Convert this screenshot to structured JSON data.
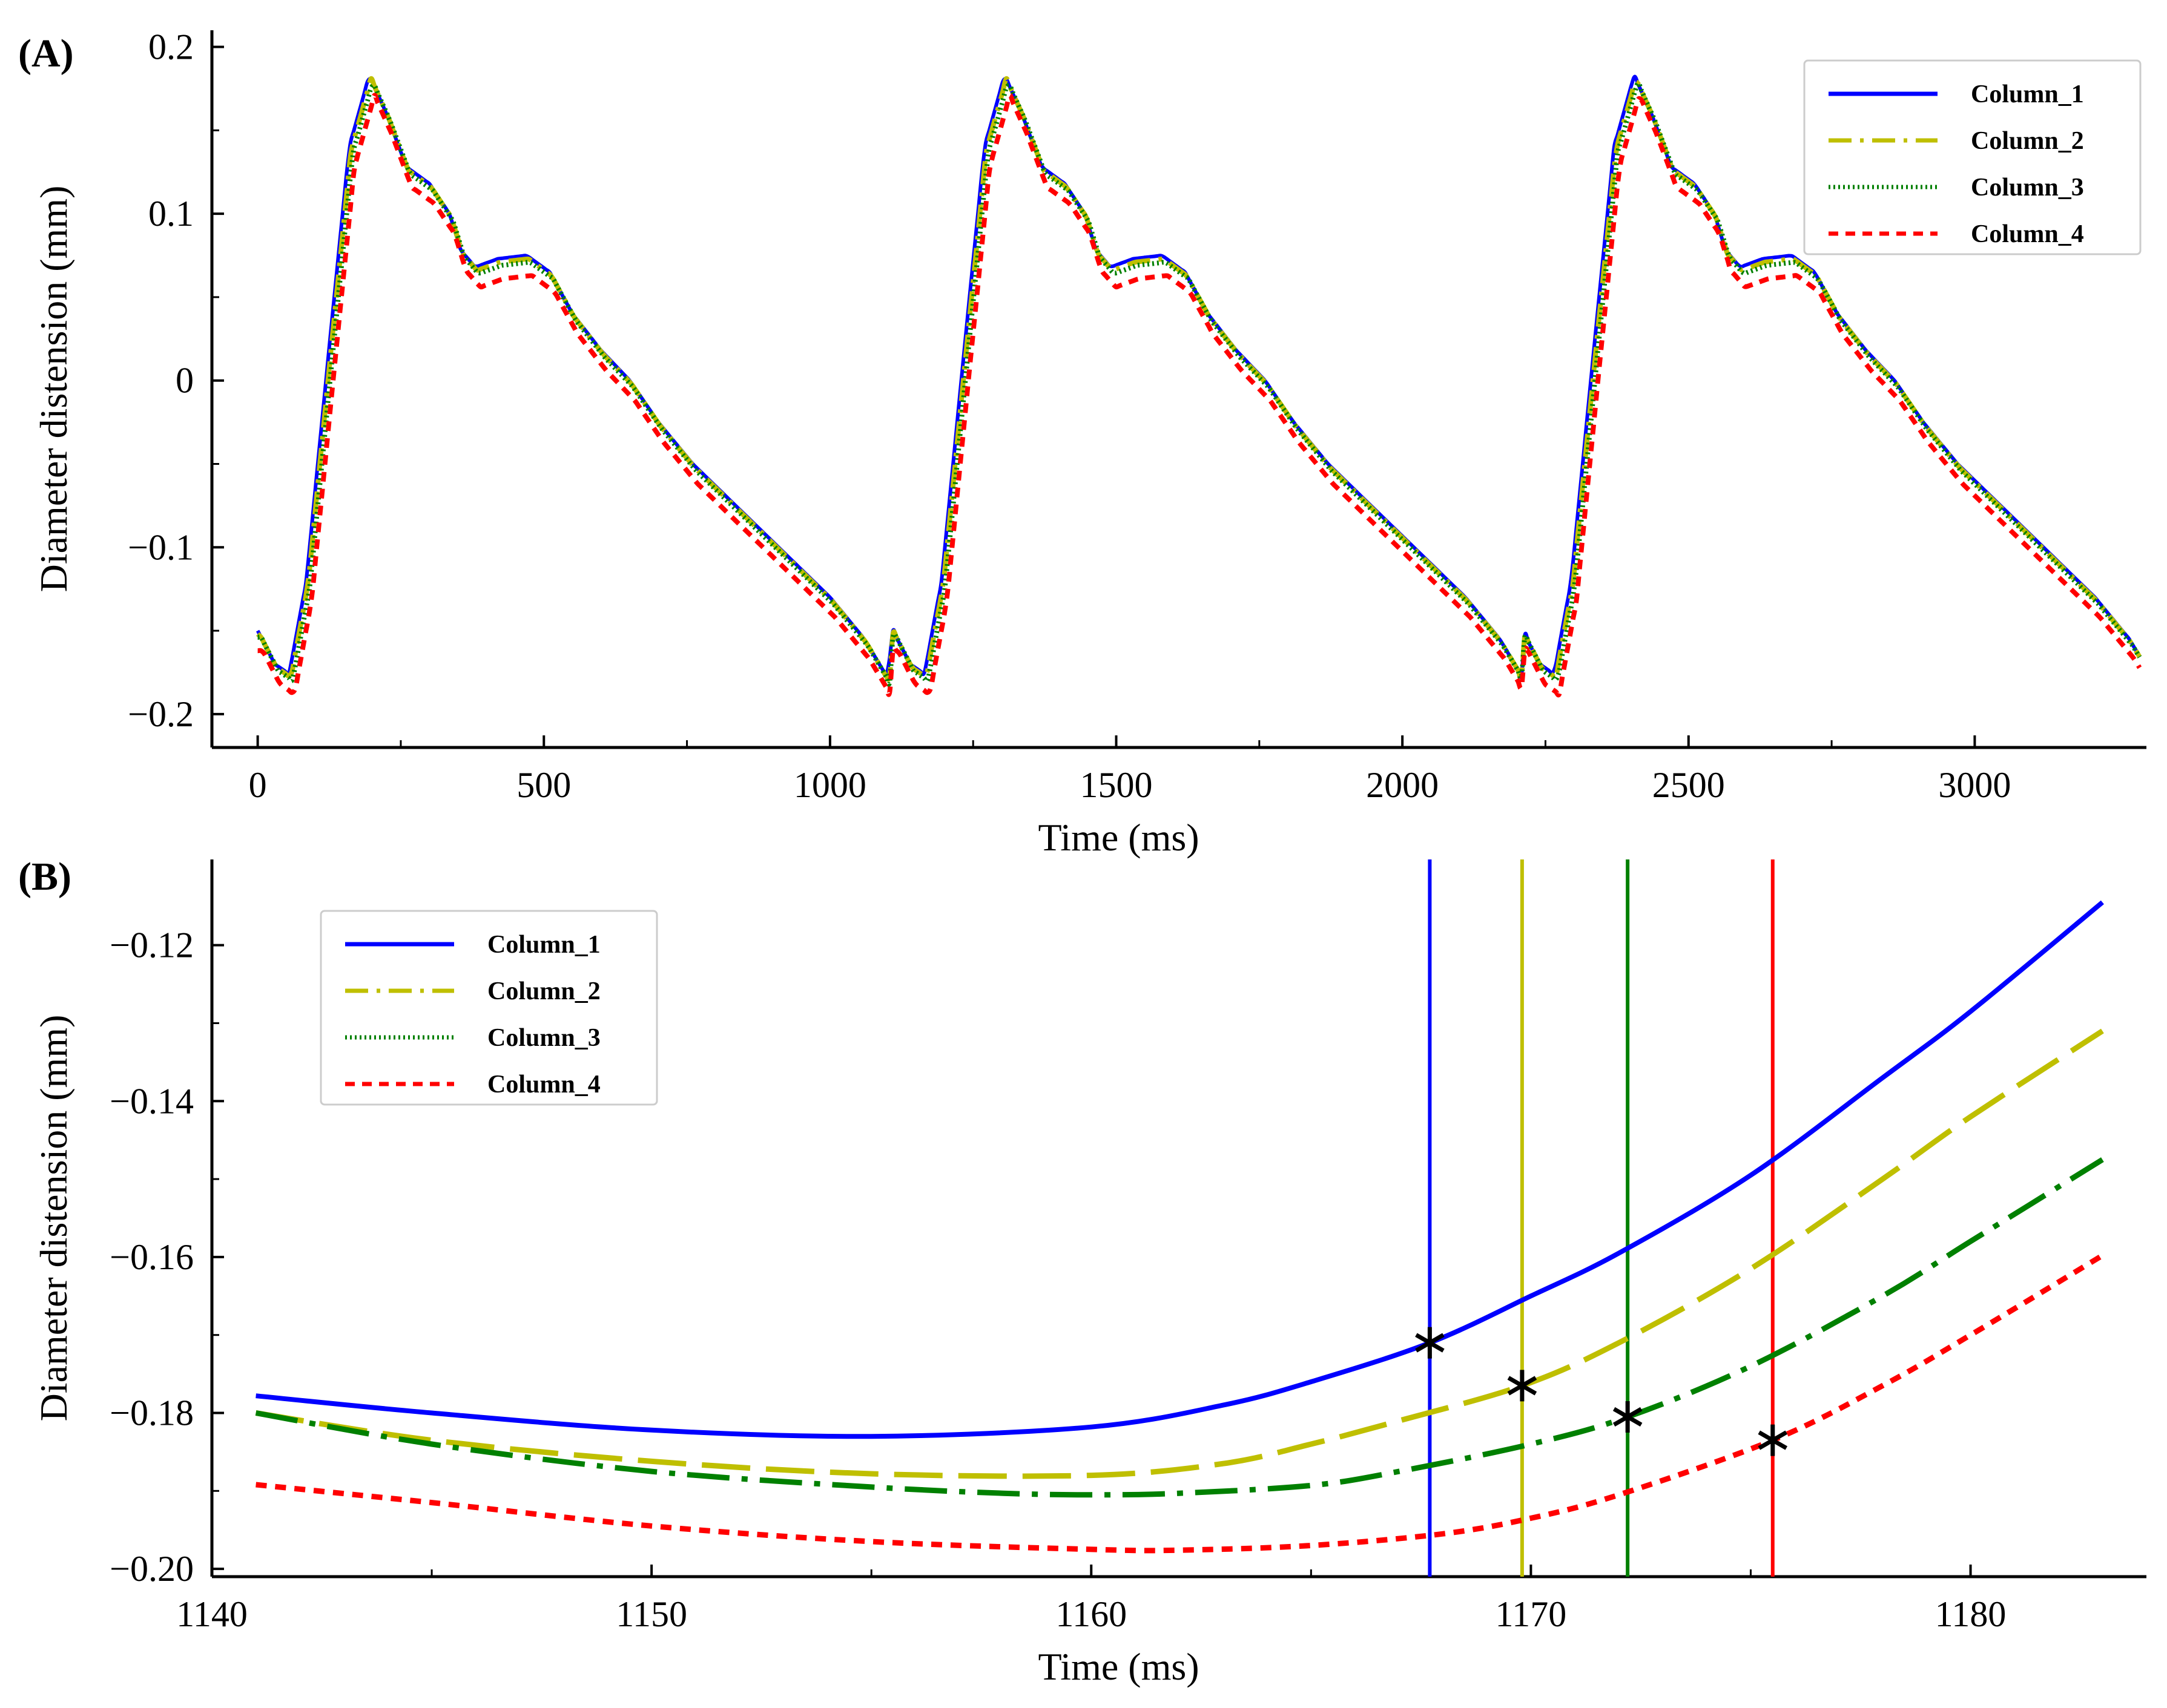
{
  "colors": {
    "column_1": "#0000ff",
    "column_2": "#bfbf00",
    "column_3": "#008000",
    "column_4": "#ff0000",
    "marker": "#000000"
  },
  "chart_data": [
    {
      "type": "line",
      "panel_label": "(A)",
      "xlabel": "Time (ms)",
      "ylabel": "Diameter distension (mm)",
      "xlim": [
        -80,
        3300
      ],
      "ylim": [
        -0.22,
        0.21
      ],
      "xticks": [
        0,
        500,
        1000,
        1500,
        2000,
        2500,
        3000
      ],
      "xtick_labels": [
        "0",
        "500",
        "1000",
        "1500",
        "2000",
        "2500",
        "3000"
      ],
      "yticks": [
        -0.2,
        -0.1,
        0,
        0.1,
        0.2
      ],
      "ytick_labels": [
        "−0.2",
        "−0.1",
        "0",
        "0.1",
        "0.2"
      ],
      "legend": {
        "position": "top-right",
        "entries": [
          "Column_1",
          "Column_2",
          "Column_3",
          "Column_4"
        ]
      },
      "cycle": {
        "starts": [
          0,
          1110,
          2210
        ],
        "end": 3290,
        "template_t": [
          0,
          30,
          55,
          85,
          125,
          160,
          195,
          225,
          260,
          300,
          335,
          355,
          380,
          420,
          470,
          510,
          550,
          600,
          650,
          700,
          760,
          820,
          880,
          940,
          1000,
          1060,
          1100,
          1110
        ],
        "template_y": [
          -0.15,
          -0.17,
          -0.176,
          -0.12,
          0.02,
          0.14,
          0.183,
          0.16,
          0.128,
          0.118,
          0.1,
          0.078,
          0.068,
          0.073,
          0.075,
          0.065,
          0.04,
          0.018,
          0.0,
          -0.025,
          -0.05,
          -0.07,
          -0.09,
          -0.11,
          -0.13,
          -0.155,
          -0.178,
          -0.15
        ]
      },
      "series": [
        {
          "name": "Column_1",
          "time_offset_ms": 0,
          "y_offset": 0.0,
          "dash": "solid"
        },
        {
          "name": "Column_2",
          "time_offset_ms": 3,
          "y_offset": -0.002,
          "dash": "dashdot"
        },
        {
          "name": "Column_3",
          "time_offset_ms": 6,
          "y_offset": -0.004,
          "dash": "dotted"
        },
        {
          "name": "Column_4",
          "time_offset_ms": 9,
          "y_offset": -0.012,
          "dash": "dashed"
        }
      ]
    },
    {
      "type": "line",
      "panel_label": "(B)",
      "xlabel": "Time (ms)",
      "ylabel": "Diameter distension (mm)",
      "xlim": [
        1140,
        1184
      ],
      "ylim": [
        -0.201,
        -0.109
      ],
      "xticks": [
        1140,
        1150,
        1160,
        1170,
        1180
      ],
      "xtick_labels": [
        "1140",
        "1150",
        "1160",
        "1170",
        "1180"
      ],
      "yticks": [
        -0.2,
        -0.18,
        -0.16,
        -0.14,
        -0.12
      ],
      "ytick_labels": [
        "−0.20",
        "−0.18",
        "−0.16",
        "−0.14",
        "−0.12"
      ],
      "legend": {
        "position": "top-left",
        "entries": [
          "Column_1",
          "Column_2",
          "Column_3",
          "Column_4"
        ]
      },
      "series": [
        {
          "name": "Column_1",
          "dash": "solid",
          "x": [
            1141,
            1145,
            1150,
            1155,
            1160,
            1163,
            1165,
            1167.7,
            1170,
            1172,
            1175,
            1178,
            1180,
            1183
          ],
          "y": [
            -0.1778,
            -0.18,
            -0.1822,
            -0.183,
            -0.1818,
            -0.179,
            -0.176,
            -0.171,
            -0.165,
            -0.1595,
            -0.1495,
            -0.137,
            -0.1285,
            -0.1145
          ],
          "marker": {
            "x": 1167.7,
            "y": -0.171
          },
          "vline_x": 1167.7
        },
        {
          "name": "Column_2",
          "dash": "dashdot",
          "x": [
            1141,
            1145,
            1150,
            1155,
            1160,
            1163,
            1165,
            1167,
            1169.8,
            1172,
            1175,
            1178,
            1180,
            1183
          ],
          "y": [
            -0.18,
            -0.1835,
            -0.1862,
            -0.1878,
            -0.188,
            -0.1865,
            -0.184,
            -0.181,
            -0.1765,
            -0.171,
            -0.1615,
            -0.15,
            -0.142,
            -0.131
          ],
          "marker": {
            "x": 1169.8,
            "y": -0.1765
          },
          "vline_x": 1169.8
        },
        {
          "name": "Column_3",
          "dash": "dotted",
          "x": [
            1141,
            1145,
            1150,
            1155,
            1158,
            1160,
            1162,
            1165,
            1167,
            1170,
            1172.2,
            1175,
            1178,
            1180,
            1183
          ],
          "y": [
            -0.18,
            -0.184,
            -0.1875,
            -0.1895,
            -0.1903,
            -0.1905,
            -0.1903,
            -0.1893,
            -0.1875,
            -0.184,
            -0.1805,
            -0.174,
            -0.165,
            -0.158,
            -0.1475
          ],
          "marker": {
            "x": 1172.2,
            "y": -0.1805
          },
          "vline_x": 1172.2
        },
        {
          "name": "Column_4",
          "dash": "dashed",
          "x": [
            1141,
            1145,
            1150,
            1155,
            1160,
            1162,
            1165,
            1168,
            1170,
            1172,
            1175.5,
            1178,
            1180,
            1183
          ],
          "y": [
            -0.1892,
            -0.1915,
            -0.1945,
            -0.1965,
            -0.1975,
            -0.1976,
            -0.197,
            -0.1955,
            -0.1935,
            -0.1905,
            -0.1835,
            -0.1765,
            -0.17,
            -0.1598
          ],
          "marker": {
            "x": 1175.5,
            "y": -0.1835
          },
          "vline_x": 1175.5
        }
      ]
    }
  ]
}
